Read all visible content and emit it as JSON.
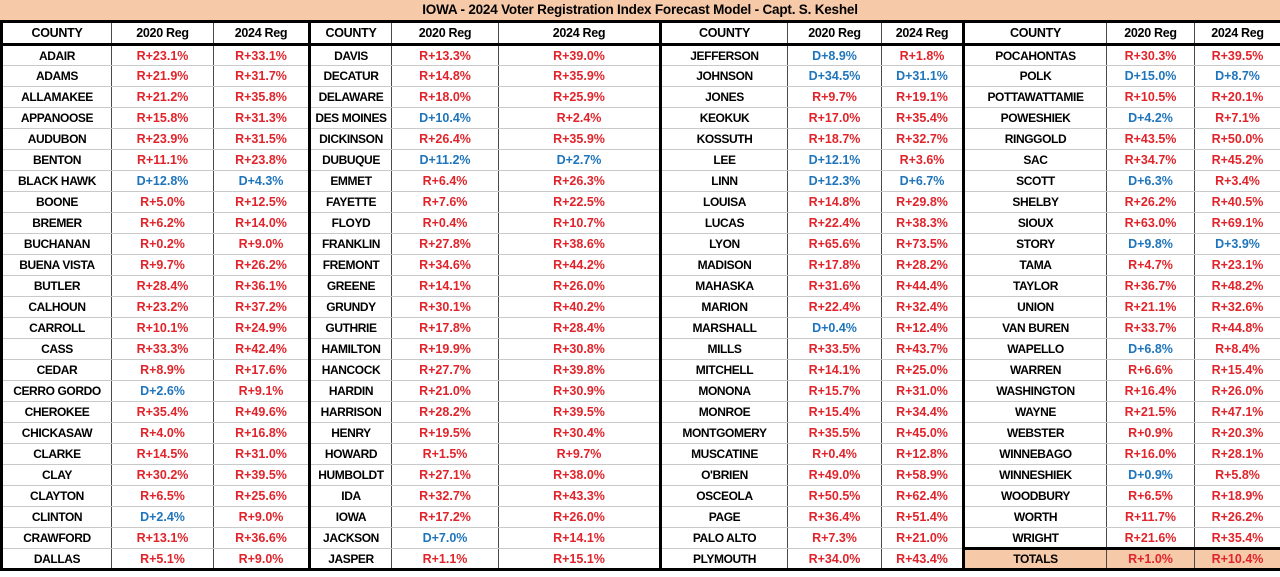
{
  "chart_data": {
    "type": "table",
    "title": "IOWA -  2024 Voter Registration Index Forecast Model - Capt. S. Keshel",
    "columns": [
      "COUNTY",
      "2020 Reg",
      "2024 Reg"
    ],
    "accent_colors": {
      "republican": "#E1242B",
      "democrat": "#1F75BC",
      "highlight": "#F6C9A9"
    },
    "groups": [
      [
        [
          "ADAIR",
          "R+23.1%",
          "R+33.1%"
        ],
        [
          "ADAMS",
          "R+21.9%",
          "R+31.7%"
        ],
        [
          "ALLAMAKEE",
          "R+21.2%",
          "R+35.8%"
        ],
        [
          "APPANOOSE",
          "R+15.8%",
          "R+31.3%"
        ],
        [
          "AUDUBON",
          "R+23.9%",
          "R+31.5%"
        ],
        [
          "BENTON",
          "R+11.1%",
          "R+23.8%"
        ],
        [
          "BLACK HAWK",
          "D+12.8%",
          "D+4.3%"
        ],
        [
          "BOONE",
          "R+5.0%",
          "R+12.5%"
        ],
        [
          "BREMER",
          "R+6.2%",
          "R+14.0%"
        ],
        [
          "BUCHANAN",
          "R+0.2%",
          "R+9.0%"
        ],
        [
          "BUENA VISTA",
          "R+9.7%",
          "R+26.2%"
        ],
        [
          "BUTLER",
          "R+28.4%",
          "R+36.1%"
        ],
        [
          "CALHOUN",
          "R+23.2%",
          "R+37.2%"
        ],
        [
          "CARROLL",
          "R+10.1%",
          "R+24.9%"
        ],
        [
          "CASS",
          "R+33.3%",
          "R+42.4%"
        ],
        [
          "CEDAR",
          "R+8.9%",
          "R+17.6%"
        ],
        [
          "CERRO GORDO",
          "D+2.6%",
          "R+9.1%"
        ],
        [
          "CHEROKEE",
          "R+35.4%",
          "R+49.6%"
        ],
        [
          "CHICKASAW",
          "R+4.0%",
          "R+16.8%"
        ],
        [
          "CLARKE",
          "R+14.5%",
          "R+31.0%"
        ],
        [
          "CLAY",
          "R+30.2%",
          "R+39.5%"
        ],
        [
          "CLAYTON",
          "R+6.5%",
          "R+25.6%"
        ],
        [
          "CLINTON",
          "D+2.4%",
          "R+9.0%"
        ],
        [
          "CRAWFORD",
          "R+13.1%",
          "R+36.6%"
        ],
        [
          "DALLAS",
          "R+5.1%",
          "R+9.0%"
        ]
      ],
      [
        [
          "DAVIS",
          "R+13.3%",
          "R+39.0%"
        ],
        [
          "DECATUR",
          "R+14.8%",
          "R+35.9%"
        ],
        [
          "DELAWARE",
          "R+18.0%",
          "R+25.9%"
        ],
        [
          "DES MOINES",
          "D+10.4%",
          "R+2.4%"
        ],
        [
          "DICKINSON",
          "R+26.4%",
          "R+35.9%"
        ],
        [
          "DUBUQUE",
          "D+11.2%",
          "D+2.7%"
        ],
        [
          "EMMET",
          "R+6.4%",
          "R+26.3%"
        ],
        [
          "FAYETTE",
          "R+7.6%",
          "R+22.5%"
        ],
        [
          "FLOYD",
          "R+0.4%",
          "R+10.7%"
        ],
        [
          "FRANKLIN",
          "R+27.8%",
          "R+38.6%"
        ],
        [
          "FREMONT",
          "R+34.6%",
          "R+44.2%"
        ],
        [
          "GREENE",
          "R+14.1%",
          "R+26.0%"
        ],
        [
          "GRUNDY",
          "R+30.1%",
          "R+40.2%"
        ],
        [
          "GUTHRIE",
          "R+17.8%",
          "R+28.4%"
        ],
        [
          "HAMILTON",
          "R+19.9%",
          "R+30.8%"
        ],
        [
          "HANCOCK",
          "R+27.7%",
          "R+39.8%"
        ],
        [
          "HARDIN",
          "R+21.0%",
          "R+30.9%"
        ],
        [
          "HARRISON",
          "R+28.2%",
          "R+39.5%"
        ],
        [
          "HENRY",
          "R+19.5%",
          "R+30.4%"
        ],
        [
          "HOWARD",
          "R+1.5%",
          "R+9.7%"
        ],
        [
          "HUMBOLDT",
          "R+27.1%",
          "R+38.0%"
        ],
        [
          "IDA",
          "R+32.7%",
          "R+43.3%"
        ],
        [
          "IOWA",
          "R+17.2%",
          "R+26.0%"
        ],
        [
          "JACKSON",
          "D+7.0%",
          "R+14.1%"
        ],
        [
          "JASPER",
          "R+1.1%",
          "R+15.1%"
        ]
      ],
      [
        [
          "JEFFERSON",
          "D+8.9%",
          "R+1.8%"
        ],
        [
          "JOHNSON",
          "D+34.5%",
          "D+31.1%"
        ],
        [
          "JONES",
          "R+9.7%",
          "R+19.1%"
        ],
        [
          "KEOKUK",
          "R+17.0%",
          "R+35.4%"
        ],
        [
          "KOSSUTH",
          "R+18.7%",
          "R+32.7%"
        ],
        [
          "LEE",
          "D+12.1%",
          "R+3.6%"
        ],
        [
          "LINN",
          "D+12.3%",
          "D+6.7%"
        ],
        [
          "LOUISA",
          "R+14.8%",
          "R+29.8%"
        ],
        [
          "LUCAS",
          "R+22.4%",
          "R+38.3%"
        ],
        [
          "LYON",
          "R+65.6%",
          "R+73.5%"
        ],
        [
          "MADISON",
          "R+17.8%",
          "R+28.2%"
        ],
        [
          "MAHASKA",
          "R+31.6%",
          "R+44.4%"
        ],
        [
          "MARION",
          "R+22.4%",
          "R+32.4%"
        ],
        [
          "MARSHALL",
          "D+0.4%",
          "R+12.4%"
        ],
        [
          "MILLS",
          "R+33.5%",
          "R+43.7%"
        ],
        [
          "MITCHELL",
          "R+14.1%",
          "R+25.0%"
        ],
        [
          "MONONA",
          "R+15.7%",
          "R+31.0%"
        ],
        [
          "MONROE",
          "R+15.4%",
          "R+34.4%"
        ],
        [
          "MONTGOMERY",
          "R+35.5%",
          "R+45.0%"
        ],
        [
          "MUSCATINE",
          "R+0.4%",
          "R+12.8%"
        ],
        [
          "O'BRIEN",
          "R+49.0%",
          "R+58.9%"
        ],
        [
          "OSCEOLA",
          "R+50.5%",
          "R+62.4%"
        ],
        [
          "PAGE",
          "R+36.4%",
          "R+51.4%"
        ],
        [
          "PALO ALTO",
          "R+7.3%",
          "R+21.0%"
        ],
        [
          "PLYMOUTH",
          "R+34.0%",
          "R+43.4%"
        ]
      ],
      [
        [
          "POCAHONTAS",
          "R+30.3%",
          "R+39.5%"
        ],
        [
          "POLK",
          "D+15.0%",
          "D+8.7%"
        ],
        [
          "POTTAWATTAMIE",
          "R+10.5%",
          "R+20.1%"
        ],
        [
          "POWESHIEK",
          "D+4.2%",
          "R+7.1%"
        ],
        [
          "RINGGOLD",
          "R+43.5%",
          "R+50.0%"
        ],
        [
          "SAC",
          "R+34.7%",
          "R+45.2%"
        ],
        [
          "SCOTT",
          "D+6.3%",
          "R+3.4%"
        ],
        [
          "SHELBY",
          "R+26.2%",
          "R+40.5%"
        ],
        [
          "SIOUX",
          "R+63.0%",
          "R+69.1%"
        ],
        [
          "STORY",
          "D+9.8%",
          "D+3.9%"
        ],
        [
          "TAMA",
          "R+4.7%",
          "R+23.1%"
        ],
        [
          "TAYLOR",
          "R+36.7%",
          "R+48.2%"
        ],
        [
          "UNION",
          "R+21.1%",
          "R+32.6%"
        ],
        [
          "VAN BUREN",
          "R+33.7%",
          "R+44.8%"
        ],
        [
          "WAPELLO",
          "D+6.8%",
          "R+8.4%"
        ],
        [
          "WARREN",
          "R+6.6%",
          "R+15.4%"
        ],
        [
          "WASHINGTON",
          "R+16.4%",
          "R+26.0%"
        ],
        [
          "WAYNE",
          "R+21.5%",
          "R+47.1%"
        ],
        [
          "WEBSTER",
          "R+0.9%",
          "R+20.3%"
        ],
        [
          "WINNEBAGO",
          "R+16.0%",
          "R+28.1%"
        ],
        [
          "WINNESHIEK",
          "D+0.9%",
          "R+5.8%"
        ],
        [
          "WOODBURY",
          "R+6.5%",
          "R+18.9%"
        ],
        [
          "WORTH",
          "R+11.7%",
          "R+26.2%"
        ],
        [
          "WRIGHT",
          "R+21.6%",
          "R+35.4%"
        ]
      ]
    ],
    "totals": [
      "TOTALS",
      "R+1.0%",
      "R+10.4%"
    ]
  }
}
